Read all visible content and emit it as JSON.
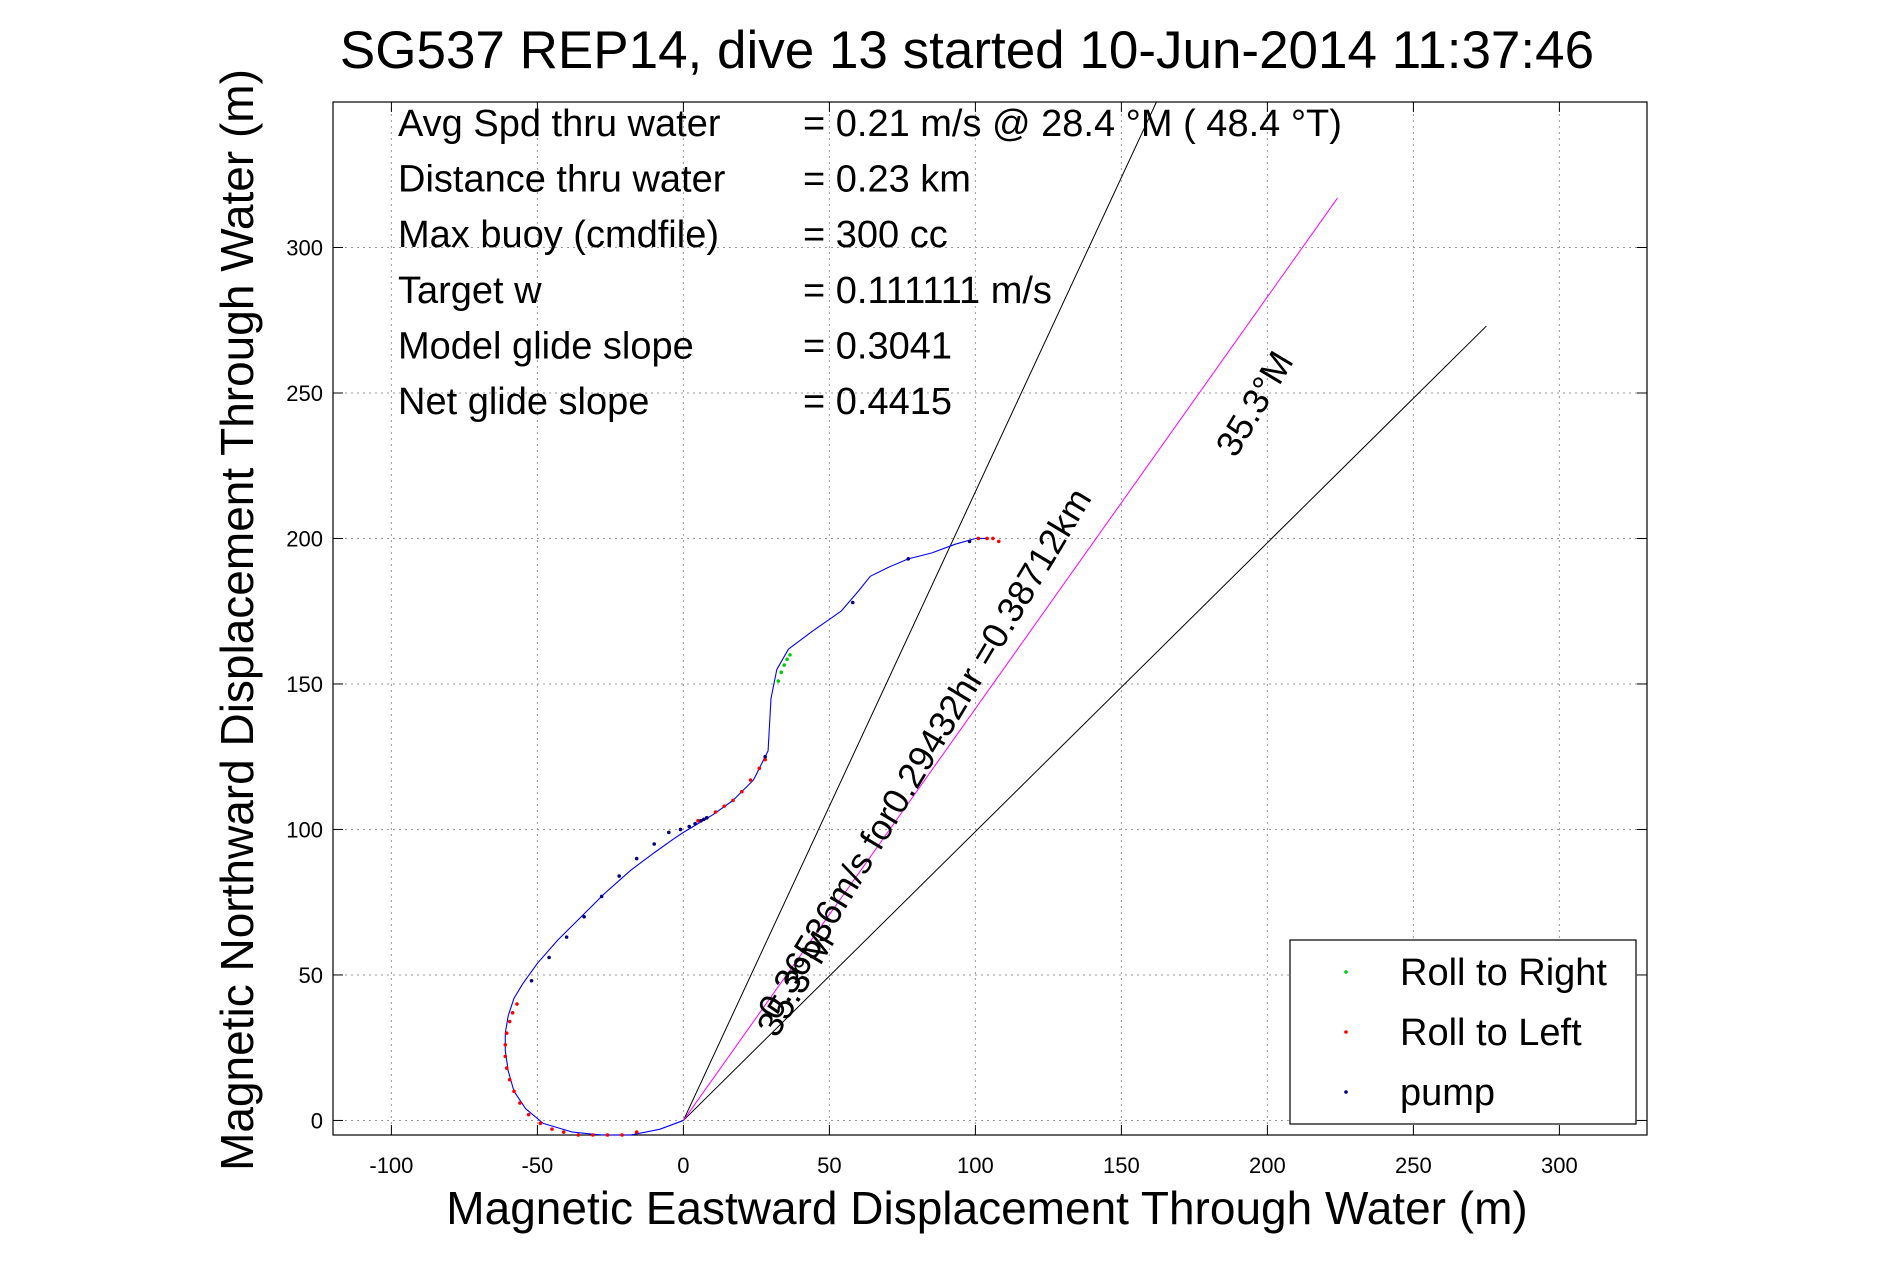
{
  "chart_data": {
    "type": "line",
    "title": "SG537 REP14, dive 13 started 10-Jun-2014 11:37:46",
    "xlabel": "Magnetic Eastward Displacement Through Water (m)",
    "ylabel": "Magnetic Northward Displacement Through Water (m)",
    "xlim": [
      -120,
      330
    ],
    "ylim": [
      -5,
      350
    ],
    "x_ticks": [
      -100,
      -50,
      0,
      50,
      100,
      150,
      200,
      250,
      300
    ],
    "y_ticks": [
      0,
      50,
      100,
      150,
      200,
      250,
      300
    ],
    "x_tick_labels": [
      "-100",
      "-50",
      "0",
      "50",
      "100",
      "150",
      "200",
      "250",
      "300"
    ],
    "y_tick_labels": [
      "0",
      "50",
      "100",
      "150",
      "200",
      "250",
      "300"
    ],
    "grid": true,
    "stats": [
      {
        "label": "Avg Spd thru water",
        "value": "=  0.21 m/s @  28.4 °M ( 48.4 °T)"
      },
      {
        "label": "Distance thru water",
        "value": "=  0.23 km"
      },
      {
        "label": "Max buoy (cmdfile)",
        "value": "= 300 cc"
      },
      {
        "label": "Target w",
        "value": "= 0.111111 m/s"
      },
      {
        "label": "Model glide slope",
        "value": "= 0.3041"
      },
      {
        "label": "Net glide slope",
        "value": "= 0.4415"
      }
    ],
    "track": {
      "color": "#0000ff",
      "x": [
        0,
        -8,
        -18,
        -28,
        -38,
        -48,
        -54,
        -58,
        -60,
        -61,
        -61,
        -60,
        -58,
        -55,
        -50,
        -43,
        -35,
        -27,
        -18,
        -10,
        -3,
        0,
        5,
        10,
        17,
        24,
        29,
        30,
        32,
        36,
        44,
        54,
        60,
        64,
        70,
        77,
        85,
        93,
        100,
        104
      ],
      "y": [
        0,
        -3,
        -5,
        -5,
        -4,
        -1,
        4,
        10,
        17,
        24,
        30,
        36,
        42,
        47,
        54,
        62,
        70,
        78,
        86,
        92,
        97,
        99,
        102,
        105,
        110,
        117,
        127,
        145,
        155,
        162,
        168,
        175,
        182,
        187,
        190,
        193,
        195,
        198,
        200,
        200
      ]
    },
    "heading_lines": [
      {
        "color": "#000000",
        "x": [
          0,
          162
        ],
        "y": [
          0,
          350
        ]
      },
      {
        "color": "#000000",
        "x": [
          0,
          275
        ],
        "y": [
          0,
          273
        ]
      },
      {
        "color": "#ff00ff",
        "x": [
          0,
          224
        ],
        "y": [
          0,
          317
        ]
      }
    ],
    "current_annotation": "0.36536m/s for0.29432hr =0.38712km",
    "heading_annotations": [
      "35.3°M",
      "35.3°M"
    ],
    "roll_right_points": {
      "color": "#00cc00",
      "x": [
        32.5,
        33.5,
        34.5,
        35.5,
        36.5
      ],
      "y": [
        151,
        154,
        156.5,
        158.5,
        160
      ]
    },
    "roll_left_points": {
      "color": "#ff0000",
      "x": [
        -57,
        -58.5,
        -59.5,
        -60.5,
        -61,
        -61,
        -60.5,
        -59.5,
        -58,
        -56,
        -53,
        -49,
        -45,
        -41,
        -36,
        -31,
        -26,
        -21,
        -16,
        5,
        8,
        11,
        14,
        17,
        20,
        23,
        26,
        28,
        101,
        104,
        106,
        108
      ],
      "y": [
        40,
        37,
        34,
        30,
        26,
        22,
        18,
        14,
        10,
        6,
        2,
        -1,
        -3,
        -4,
        -5,
        -5,
        -5,
        -5,
        -4,
        103,
        104,
        106,
        108,
        110,
        113,
        117,
        121,
        124,
        200,
        200,
        200,
        199
      ]
    },
    "pump_points": {
      "color": "#000080",
      "x": [
        -52,
        -46,
        -40,
        -34,
        -28,
        -22,
        -16,
        -10,
        -5,
        -1,
        2,
        4,
        6,
        7,
        8,
        28,
        58,
        77,
        98
      ],
      "y": [
        48,
        56,
        63,
        70,
        77,
        84,
        90,
        95,
        99,
        100,
        101,
        102,
        103,
        103.5,
        104,
        125,
        178,
        193,
        199
      ]
    },
    "legend": {
      "position": "bottom-right",
      "entries": [
        {
          "label": "Roll to Right",
          "color": "#00cc00"
        },
        {
          "label": "Roll to Left",
          "color": "#ff0000"
        },
        {
          "label": "pump",
          "color": "#000080"
        }
      ]
    }
  }
}
